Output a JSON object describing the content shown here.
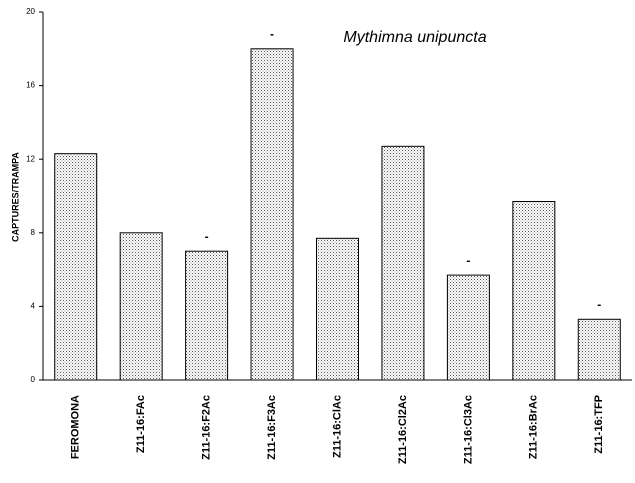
{
  "chart_data": {
    "type": "bar",
    "title": "Mythimna unipuncta",
    "y_label": "CAPTURES/TRAMPA",
    "categories": [
      "FEROMONA",
      "Z11-16:FAc",
      "Z11-16:F2Ac",
      "Z11-16:F3Ac",
      "Z11-16:ClAc",
      "Z11-16:Cl2Ac",
      "Z11-16:Cl3Ac",
      "Z11-16:BrAc",
      "Z11-16:TFP"
    ],
    "values": [
      12.3,
      8,
      7,
      18,
      7.7,
      12.7,
      5.7,
      9.7,
      3.3
    ],
    "markers": [
      null,
      null,
      "-",
      "-",
      null,
      null,
      "-",
      null,
      "-"
    ],
    "color": "#d8d8d8",
    "ylim": [
      0,
      20
    ],
    "yticks": [
      0,
      4,
      8,
      12,
      16,
      20
    ],
    "grid": false
  }
}
